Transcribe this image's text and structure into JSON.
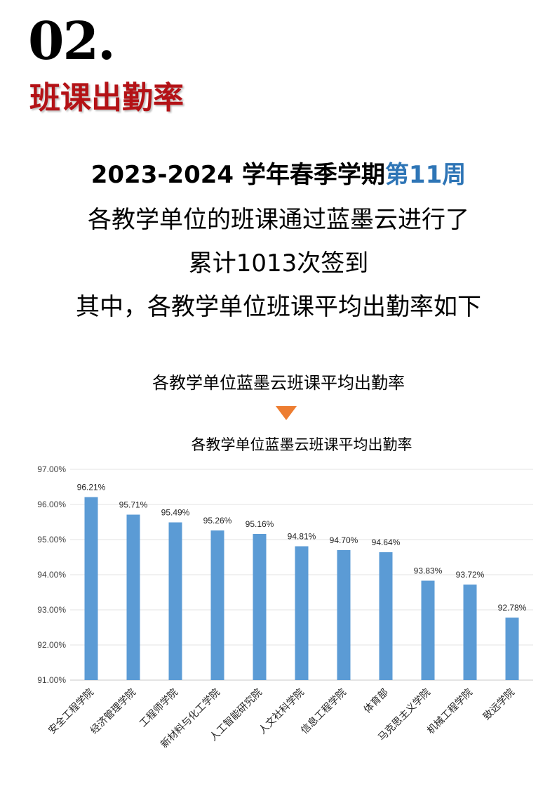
{
  "header": {
    "section_number": "02.",
    "section_title": "班课出勤率"
  },
  "summary": {
    "line1_prefix": "2023-2024 学年春季学期",
    "line1_highlight": "第11周",
    "line2": "各教学单位的班课通过蓝墨云进行了",
    "line3": "累计1013次签到",
    "line4": "其中，各教学单位班课平均出勤率如下",
    "highlight_color": "#2e75b6"
  },
  "chart_heading": "各教学单位蓝墨云班课平均出勤率",
  "arrow_color": "#ed7d31",
  "chart_data": {
    "type": "bar",
    "title": "各教学单位蓝墨云班课平均出勤率",
    "categories": [
      "安全工程学院",
      "经济管理学院",
      "工程师学院",
      "新材料与化工学院",
      "人工智能研究院",
      "人文社科学院",
      "信息工程学院",
      "体育部",
      "马克思主义学院",
      "机械工程学院",
      "致远学院"
    ],
    "values": [
      96.21,
      95.71,
      95.49,
      95.26,
      95.16,
      94.81,
      94.7,
      94.64,
      93.83,
      93.72,
      92.78
    ],
    "data_labels": [
      "96.21%",
      "95.71%",
      "95.49%",
      "95.26%",
      "95.16%",
      "94.81%",
      "94.70%",
      "94.64%",
      "93.83%",
      "93.72%",
      "92.78%"
    ],
    "ylim": [
      91,
      97
    ],
    "yticks": [
      "91.00%",
      "92.00%",
      "93.00%",
      "94.00%",
      "95.00%",
      "96.00%",
      "97.00%"
    ],
    "xlabel": "",
    "ylabel": "",
    "grid": true,
    "bar_color": "#5b9bd5"
  }
}
